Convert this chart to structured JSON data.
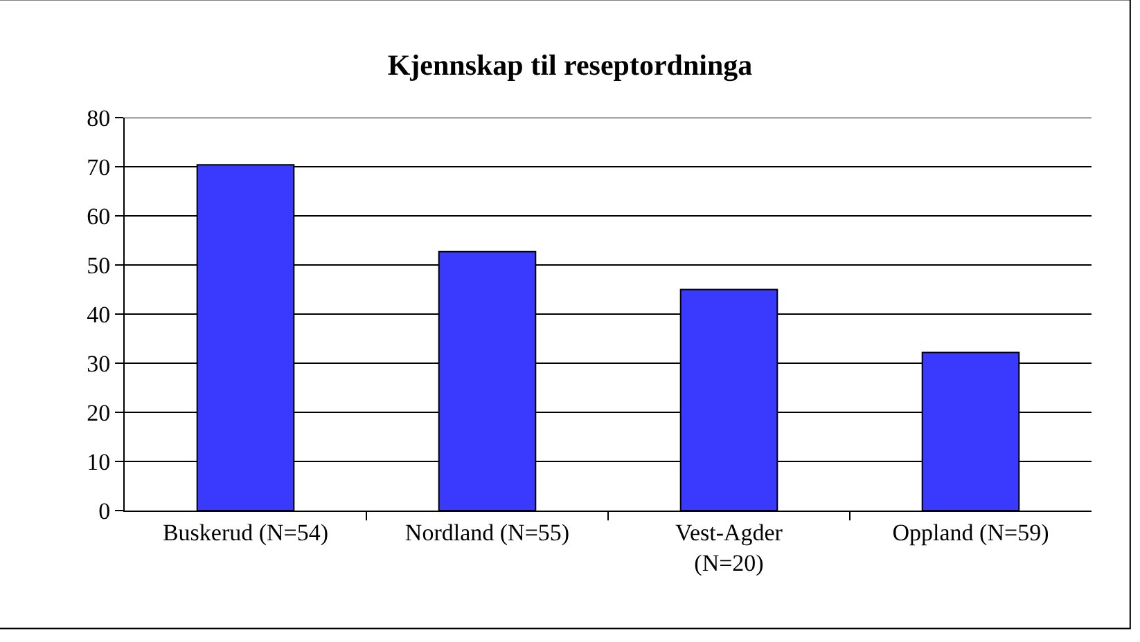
{
  "chart_data": {
    "type": "bar",
    "title": "Kjennskap til reseptordninga",
    "categories": [
      "Buskerud (N=54)",
      "Nordland (N=55)",
      "Vest-Agder (N=20)",
      "Oppland (N=59)"
    ],
    "values": [
      70.4,
      52.7,
      45,
      32.2
    ],
    "color": "#3a3aff",
    "ylim": [
      0,
      80
    ],
    "yticks": [
      0,
      10,
      20,
      30,
      40,
      50,
      60,
      70,
      80
    ],
    "grid": "y"
  }
}
